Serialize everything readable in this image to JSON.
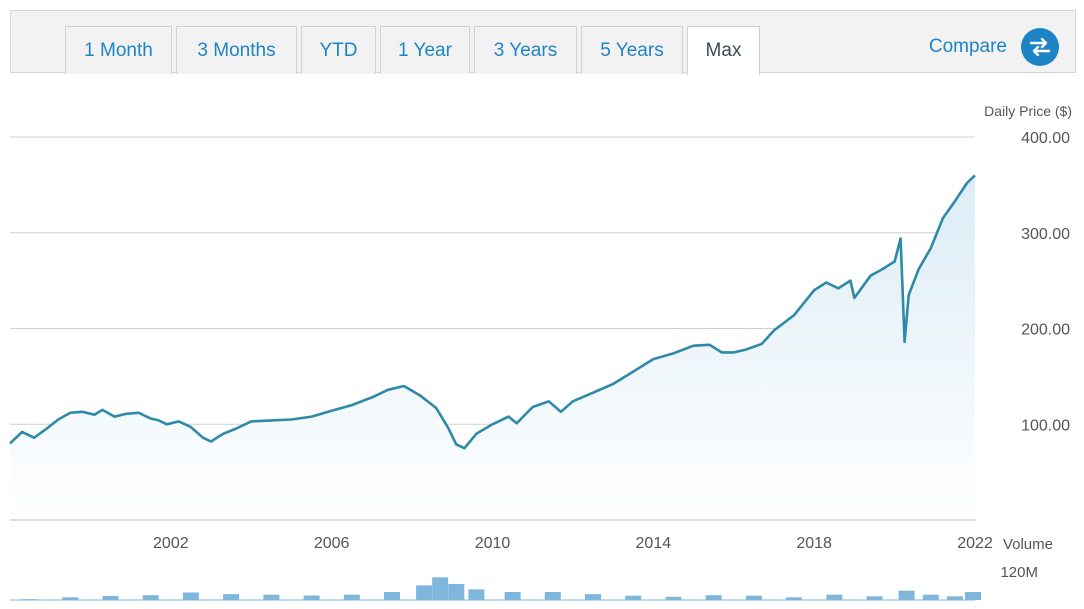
{
  "tabs": [
    {
      "label": "1 Month",
      "active": false
    },
    {
      "label": "3 Months",
      "active": false
    },
    {
      "label": "YTD",
      "active": false
    },
    {
      "label": "1 Year",
      "active": false
    },
    {
      "label": "3 Years",
      "active": false
    },
    {
      "label": "5 Years",
      "active": false
    },
    {
      "label": "Max",
      "active": true
    }
  ],
  "compare": {
    "label": "Compare",
    "icon": "swap-arrows-icon"
  },
  "colors": {
    "line": "#2e8aa6",
    "fill_top": "#dcecf6",
    "volume": "#7fb6dc",
    "grid": "#cfcfcf",
    "accent": "#1d84c6"
  },
  "chart_data": {
    "type": "line",
    "ylabel": "Daily Price ($)",
    "ylim": [
      0,
      400
    ],
    "yticks": [
      "100.00",
      "200.00",
      "300.00",
      "400.00"
    ],
    "xlim": [
      1998.0,
      2022.0
    ],
    "xticks": [
      "2002",
      "2006",
      "2010",
      "2014",
      "2018",
      "2022"
    ],
    "series": [
      {
        "name": "Daily Price",
        "x": [
          1998.0,
          1998.3,
          1998.6,
          1998.9,
          1999.2,
          1999.5,
          1999.8,
          2000.1,
          2000.3,
          2000.6,
          2000.9,
          2001.2,
          2001.5,
          2001.7,
          2001.9,
          2002.2,
          2002.5,
          2002.8,
          2003.0,
          2003.3,
          2003.6,
          2004.0,
          2004.5,
          2005.0,
          2005.5,
          2006.0,
          2006.5,
          2007.0,
          2007.4,
          2007.8,
          2008.2,
          2008.6,
          2008.9,
          2009.1,
          2009.3,
          2009.6,
          2010.0,
          2010.4,
          2010.6,
          2011.0,
          2011.4,
          2011.7,
          2012.0,
          2012.5,
          2013.0,
          2013.5,
          2014.0,
          2014.5,
          2015.0,
          2015.4,
          2015.7,
          2016.0,
          2016.3,
          2016.7,
          2017.0,
          2017.5,
          2018.0,
          2018.3,
          2018.6,
          2018.9,
          2019.0,
          2019.4,
          2019.7,
          2020.0,
          2020.15,
          2020.25,
          2020.35,
          2020.6,
          2020.9,
          2021.2,
          2021.5,
          2021.8,
          2022.0
        ],
        "values": [
          80,
          92,
          86,
          95,
          105,
          112,
          113,
          110,
          115,
          108,
          111,
          112,
          106,
          104,
          100,
          103,
          97,
          86,
          82,
          90,
          95,
          103,
          104,
          105,
          108,
          114,
          120,
          128,
          136,
          140,
          130,
          117,
          96,
          79,
          75,
          90,
          100,
          108,
          101,
          118,
          124,
          113,
          124,
          133,
          142,
          155,
          168,
          174,
          182,
          183,
          175,
          175,
          178,
          184,
          198,
          214,
          240,
          248,
          242,
          250,
          232,
          255,
          262,
          270,
          294,
          186,
          235,
          262,
          284,
          315,
          333,
          352,
          360
        ]
      }
    ],
    "volume": {
      "name": "Volume",
      "label": "Volume",
      "tick_label": "120M",
      "max": 120,
      "x": [
        1998.5,
        1999.5,
        2000.5,
        2001.5,
        2002.5,
        2003.5,
        2004.5,
        2005.5,
        2006.5,
        2007.5,
        2008.3,
        2008.7,
        2009.1,
        2009.6,
        2010.5,
        2011.5,
        2012.5,
        2013.5,
        2014.5,
        2015.5,
        2016.5,
        2017.5,
        2018.5,
        2019.5,
        2020.3,
        2020.9,
        2021.5,
        2021.95
      ],
      "values": [
        3,
        10,
        15,
        18,
        28,
        22,
        20,
        17,
        20,
        30,
        55,
        85,
        60,
        40,
        30,
        30,
        22,
        16,
        12,
        18,
        16,
        10,
        20,
        14,
        35,
        20,
        14,
        30
      ]
    }
  }
}
